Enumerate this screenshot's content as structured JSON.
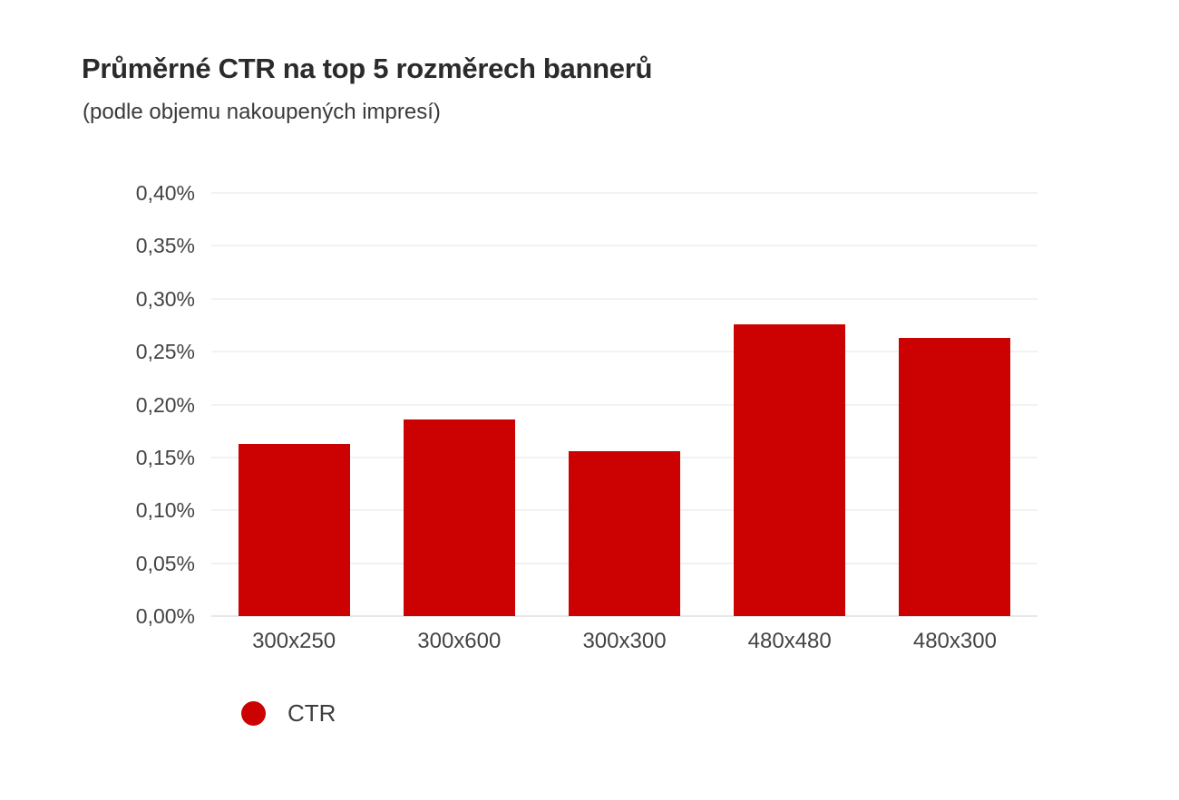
{
  "header": {
    "title": "Průměrné CTR na top 5 rozměrech bannerů",
    "subtitle": "(podle objemu nakoupených impresí)"
  },
  "legend": {
    "label": "CTR",
    "swatch_color": "#cc0202",
    "position": "bottom-left"
  },
  "colors": {
    "bar": "#cc0202",
    "gridline": "#f2f2f2",
    "baseline": "#e8e8e8",
    "axis_text": "#444444",
    "title_text": "#2b2b2b",
    "background": "#ffffff"
  },
  "chart_data": {
    "type": "bar",
    "title": "Průměrné CTR na top 5 rozměrech bannerů",
    "subtitle": "(podle objemu nakoupených impresí)",
    "categories": [
      "300x250",
      "300x600",
      "300x300",
      "480x480",
      "480x300"
    ],
    "series": [
      {
        "name": "CTR",
        "color": "#cc0202",
        "values": [
          0.163,
          0.186,
          0.156,
          0.276,
          0.263
        ]
      }
    ],
    "value_unit": "%",
    "decimal_separator": ",",
    "ylim": [
      0,
      0.4
    ],
    "ytick_step": 0.05,
    "ytick_labels_bottom_to_top": [
      "0,00%",
      "0,05%",
      "0,10%",
      "0,15%",
      "0,20%",
      "0,25%",
      "0,30%",
      "0,35%",
      "0,40%"
    ],
    "grid": "horizontal",
    "legend_position": "bottom-left"
  }
}
